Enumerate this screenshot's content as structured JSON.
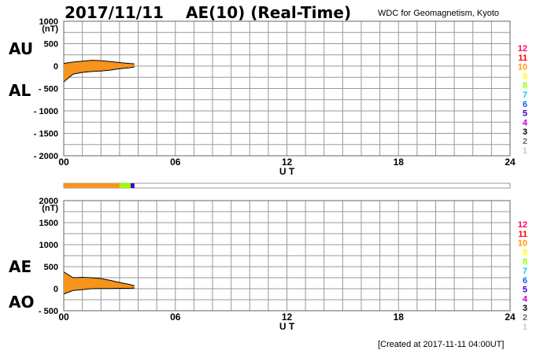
{
  "header": {
    "date": "2017/11/11",
    "title": "AE(10) (Real-Time)",
    "source": "WDC for Geomagnetism, Kyoto"
  },
  "footer": {
    "created": "[Created at 2017-11-11 04:00UT]"
  },
  "colors": {
    "fill": "#f7941d",
    "hours": [
      "#c8c8c8",
      "#707070",
      "#000000",
      "#cc00cc",
      "#3300cc",
      "#0066ff",
      "#00ccff",
      "#99ff00",
      "#ffff00",
      "#ff9900",
      "#ff0000",
      "#ff0066"
    ]
  },
  "chart_data": [
    {
      "type": "area",
      "series": [
        {
          "name": "AU",
          "x": [
            0.0,
            0.5,
            1.0,
            1.5,
            2.0,
            2.5,
            3.0,
            3.5,
            3.8
          ],
          "values": [
            60,
            90,
            110,
            130,
            120,
            100,
            80,
            60,
            50
          ]
        },
        {
          "name": "AL",
          "x": [
            0.0,
            0.5,
            1.0,
            1.5,
            2.0,
            2.5,
            3.0,
            3.5,
            3.8
          ],
          "values": [
            -350,
            -180,
            -140,
            -120,
            -110,
            -90,
            -60,
            -40,
            -20
          ]
        }
      ],
      "labels": [
        "AU",
        "AL"
      ],
      "ylabel": "(nT)",
      "xlabel": "U T",
      "yticks": [
        1000,
        500,
        0,
        -500,
        -1000,
        -1500,
        -2000
      ],
      "ylim": [
        -2000,
        1000
      ],
      "xticks": [
        0,
        6,
        12,
        18,
        24
      ],
      "xlim": [
        0,
        24
      ],
      "grid": true
    },
    {
      "type": "area",
      "series": [
        {
          "name": "AE",
          "x": [
            0.0,
            0.5,
            1.0,
            1.5,
            2.0,
            2.5,
            3.0,
            3.5,
            3.8
          ],
          "values": [
            380,
            250,
            260,
            250,
            230,
            190,
            140,
            100,
            70
          ]
        },
        {
          "name": "AO",
          "x": [
            0.0,
            0.5,
            1.0,
            1.5,
            2.0,
            2.5,
            3.0,
            3.5,
            3.8
          ],
          "values": [
            -120,
            -40,
            -20,
            0,
            5,
            5,
            10,
            10,
            15
          ]
        }
      ],
      "labels": [
        "AE",
        "AO"
      ],
      "ylabel": "(nT)",
      "xlabel": "U T",
      "yticks": [
        2000,
        1500,
        1000,
        500,
        0,
        -500
      ],
      "ylim": [
        -500,
        2000
      ],
      "xticks": [
        0,
        6,
        12,
        18,
        24
      ],
      "xlim": [
        0,
        24
      ],
      "grid": true
    }
  ],
  "xtick_labels": [
    "00",
    "06",
    "12",
    "18",
    "24"
  ],
  "hour_legend": [
    "12",
    "11",
    "10",
    "9",
    "8",
    "7",
    "6",
    "5",
    "4",
    "3",
    "2",
    "1"
  ],
  "station_bar": {
    "segments": [
      {
        "start": 0.0,
        "end": 3.0,
        "color": "#f7941d"
      },
      {
        "start": 3.0,
        "end": 3.6,
        "color": "#99ff00"
      },
      {
        "start": 3.6,
        "end": 3.8,
        "color": "#3300cc"
      }
    ]
  }
}
